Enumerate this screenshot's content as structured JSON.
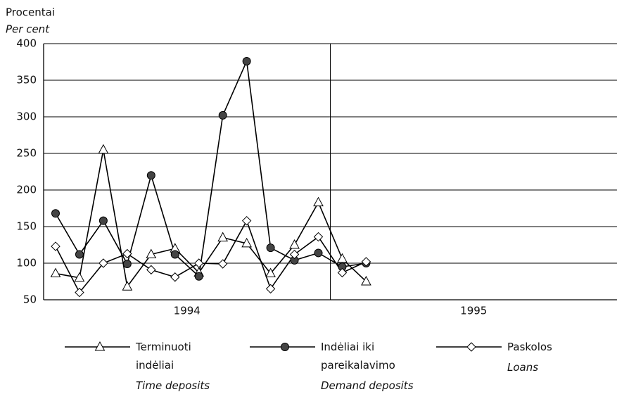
{
  "chart_data": {
    "type": "line",
    "y_label": "Procentai",
    "y_label_en": "Per cent",
    "groups": [
      "1994",
      "1995"
    ],
    "categories": [
      null,
      null,
      null,
      null,
      null,
      null,
      null,
      null,
      null,
      null,
      null,
      null,
      null,
      null,
      null,
      null,
      null,
      null,
      null,
      null,
      null,
      null,
      null,
      null
    ],
    "ylim": [
      50,
      400
    ],
    "yticks": [
      50,
      100,
      150,
      200,
      250,
      300,
      350,
      400
    ],
    "grid": true,
    "series": [
      {
        "name": "Terminuoti indėliai",
        "name_en": "Time deposits",
        "marker": "triangle",
        "color": "#000000",
        "values": [
          86,
          80,
          255,
          68,
          112,
          120,
          87,
          135,
          127,
          86,
          125,
          183,
          106,
          75,
          null,
          null,
          null,
          null,
          null,
          null,
          null,
          null,
          null,
          null
        ]
      },
      {
        "name": "Indėliai iki pareikalavimo",
        "name_en": "Demand deposits",
        "marker": "circle",
        "color": "#000000",
        "values": [
          168,
          112,
          158,
          99,
          220,
          112,
          82,
          302,
          376,
          121,
          104,
          114,
          95,
          100,
          null,
          null,
          null,
          null,
          null,
          null,
          null,
          null,
          null,
          null
        ]
      },
      {
        "name": "Paskolos",
        "name_en": "Loans",
        "marker": "diamond",
        "color": "#000000",
        "values": [
          123,
          60,
          100,
          113,
          91,
          81,
          100,
          99,
          158,
          65,
          112,
          136,
          87,
          102,
          null,
          null,
          null,
          null,
          null,
          null,
          null,
          null,
          null,
          null
        ]
      }
    ]
  }
}
